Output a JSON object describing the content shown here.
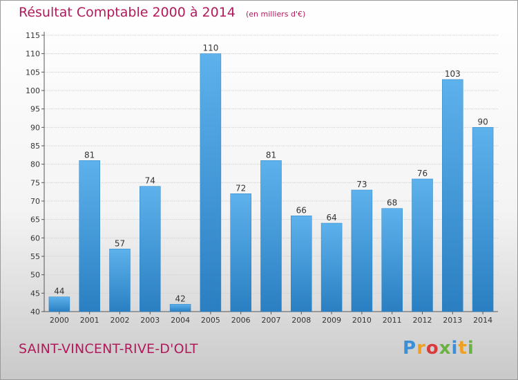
{
  "header": {
    "title": "Résultat Comptable 2000 à 2014",
    "subtitle": "(en milliers d'€)"
  },
  "footer": {
    "commune": "SAINT-VINCENT-RIVE-D'OLT",
    "logo_text": "Proxiti"
  },
  "colors": {
    "bar": "#4aa3e0",
    "bar_dark": "#2a7fc2",
    "title": "#b01a5a",
    "grid": "#d0d0d0"
  },
  "chart_data": {
    "type": "bar",
    "title": "Résultat Comptable 2000 à 2014",
    "subtitle": "(en milliers d'€)",
    "xlabel": "",
    "ylabel": "",
    "categories": [
      "2000",
      "2001",
      "2002",
      "2003",
      "2004",
      "2005",
      "2006",
      "2007",
      "2008",
      "2009",
      "2010",
      "2011",
      "2012",
      "2013",
      "2014"
    ],
    "values": [
      44,
      81,
      57,
      74,
      42,
      110,
      72,
      81,
      66,
      64,
      73,
      68,
      76,
      103,
      90
    ],
    "ylim": [
      40,
      115
    ],
    "yticks": [
      40,
      45,
      50,
      55,
      60,
      65,
      70,
      75,
      80,
      85,
      90,
      95,
      100,
      105,
      110,
      115
    ],
    "grid": true,
    "data_labels": true
  }
}
